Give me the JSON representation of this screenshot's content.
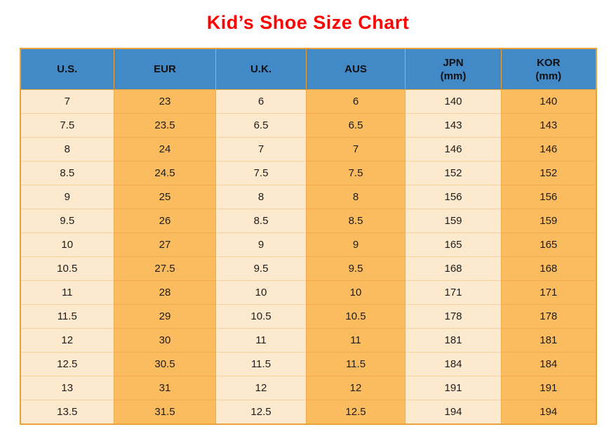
{
  "title": "Kid’s Shoe Size Chart",
  "theme": {
    "title_color": "#fe0000",
    "header_bg": "#4289c8",
    "cream_bg": "#fde9cd",
    "orange_bg": "#fbbb5f",
    "border_color": "#e9a23b"
  },
  "chart_data": {
    "type": "table",
    "title": "Kid’s Shoe Size Chart",
    "legend_position": "none",
    "grid": "on",
    "columns": [
      {
        "label": "U.S.",
        "unit": ""
      },
      {
        "label": "EUR",
        "unit": ""
      },
      {
        "label": "U.K.",
        "unit": ""
      },
      {
        "label": "AUS",
        "unit": ""
      },
      {
        "label": "JPN",
        "unit": "(mm)"
      },
      {
        "label": "KOR",
        "unit": "(mm)"
      }
    ],
    "rows": [
      [
        "7",
        "23",
        "6",
        "6",
        "140",
        "140"
      ],
      [
        "7.5",
        "23.5",
        "6.5",
        "6.5",
        "143",
        "143"
      ],
      [
        "8",
        "24",
        "7",
        "7",
        "146",
        "146"
      ],
      [
        "8.5",
        "24.5",
        "7.5",
        "7.5",
        "152",
        "152"
      ],
      [
        "9",
        "25",
        "8",
        "8",
        "156",
        "156"
      ],
      [
        "9.5",
        "26",
        "8.5",
        "8.5",
        "159",
        "159"
      ],
      [
        "10",
        "27",
        "9",
        "9",
        "165",
        "165"
      ],
      [
        "10.5",
        "27.5",
        "9.5",
        "9.5",
        "168",
        "168"
      ],
      [
        "11",
        "28",
        "10",
        "10",
        "171",
        "171"
      ],
      [
        "11.5",
        "29",
        "10.5",
        "10.5",
        "178",
        "178"
      ],
      [
        "12",
        "30",
        "11",
        "11",
        "181",
        "181"
      ],
      [
        "12.5",
        "30.5",
        "11.5",
        "11.5",
        "184",
        "184"
      ],
      [
        "13",
        "31",
        "12",
        "12",
        "191",
        "191"
      ],
      [
        "13.5",
        "31.5",
        "12.5",
        "12.5",
        "194",
        "194"
      ]
    ]
  }
}
